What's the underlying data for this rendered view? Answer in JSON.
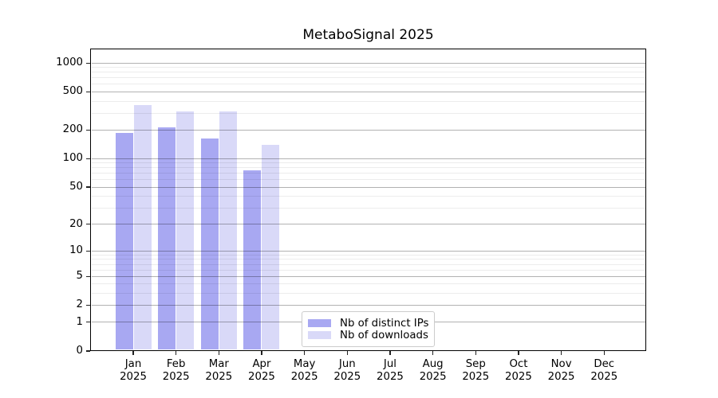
{
  "chart_data": {
    "type": "bar",
    "title": "MetaboSignal 2025",
    "categories": [
      "Jan 2025",
      "Feb 2025",
      "Mar 2025",
      "Apr 2025",
      "May 2025",
      "Jun 2025",
      "Jul 2025",
      "Aug 2025",
      "Sep 2025",
      "Oct 2025",
      "Nov 2025",
      "Dec 2025"
    ],
    "series": [
      {
        "name": "Nb of distinct IPs",
        "color": "#a8a8f2",
        "values": [
          186,
          213,
          163,
          75,
          null,
          null,
          null,
          null,
          null,
          null,
          null,
          null
        ]
      },
      {
        "name": "Nb of downloads",
        "color": "#d9d9f8",
        "values": [
          367,
          312,
          312,
          139,
          null,
          null,
          null,
          null,
          null,
          null,
          null,
          null
        ]
      }
    ],
    "xlabel": "",
    "ylabel": "",
    "y_scale": "log1p",
    "y_ticks": [
      0,
      1,
      2,
      5,
      10,
      20,
      50,
      100,
      200,
      500,
      1000
    ],
    "y_minor_gridlines": [
      3,
      4,
      6,
      7,
      8,
      9,
      30,
      40,
      60,
      70,
      80,
      90,
      300,
      400,
      600,
      700,
      800,
      900
    ],
    "ylim": [
      0,
      1400
    ],
    "grid": true,
    "legend_position": "lower center",
    "axis_color": "#000000",
    "major_grid_color": "#b0b0b0",
    "minor_grid_color": "#ececec"
  }
}
